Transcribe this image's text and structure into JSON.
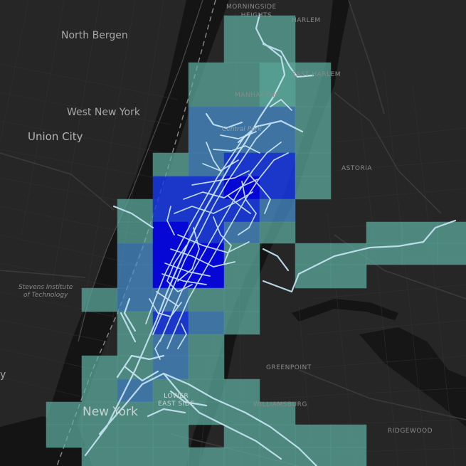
{
  "map": {
    "place_labels": {
      "north_bergen": "North Bergen",
      "west_new_york": "West New York",
      "union_city": "Union City",
      "stevens_line1": "Stevens Institute",
      "stevens_line2": "of Technology",
      "morningside_line1": "MORNINGSIDE",
      "morningside_line2": "HEIGHTS",
      "harlem": "HARLEM",
      "east_harlem": "EAST HARLEM",
      "manhattan": "MANHATTAN",
      "central_park": "Central Park",
      "astoria": "ASTORIA",
      "greenpoint": "GREENPOINT",
      "williamsburg": "WILLIAMSBURG",
      "ridgewood": "RIDGEWOOD",
      "lower_east_side_line1": "LOWER",
      "lower_east_side_line2": "EAST SIDE",
      "new_york": "New York",
      "edge_fragment": "y"
    },
    "colors": {
      "background": "#242424",
      "water": "#141414",
      "density_low": "#5fb3a3",
      "density_mid": "#4a8fd0",
      "density_high": "#1a3cf0",
      "density_max": "#0000ff",
      "trip_lines": "#c4e4f2"
    }
  }
}
